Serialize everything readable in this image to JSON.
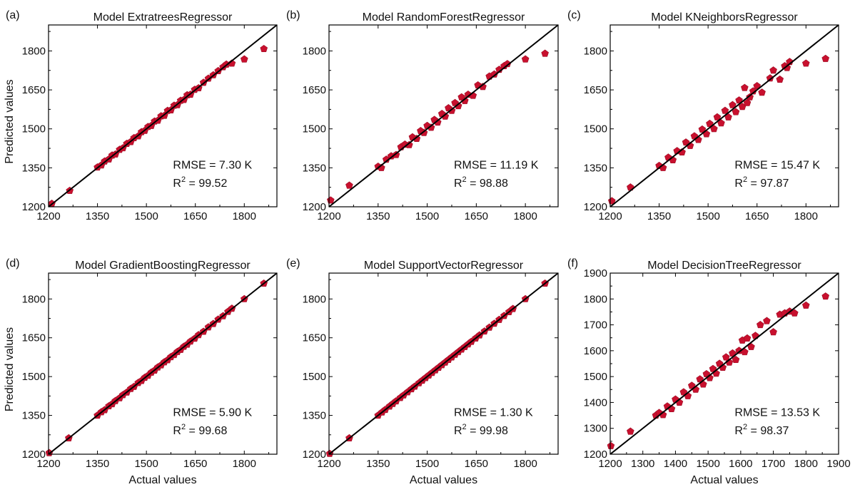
{
  "figure": {
    "ylabel": "Predicted values",
    "xlabel": "Actual values",
    "colors": {
      "marker": "#c8102e",
      "marker_edge": "#9e0d24",
      "line": "#000000"
    },
    "marker_shape": "pentagon-icon"
  },
  "chart_data": [
    {
      "type": "scatter",
      "panel_label": "(a)",
      "title": "Model ExtratreesRegressor",
      "xlim": [
        1200,
        1900
      ],
      "ylim": [
        1200,
        1900
      ],
      "xticks": [
        1200,
        1350,
        1500,
        1650,
        1800
      ],
      "yticks": [
        1200,
        1350,
        1500,
        1650,
        1800
      ],
      "show_xlabel": false,
      "show_ylabel": true,
      "rmse_text": "RMSE = 7.30 K",
      "r2_value": " = 99.52",
      "reference_line": "y = x",
      "points": [
        [
          1210,
          1212
        ],
        [
          1265,
          1262
        ],
        [
          1350,
          1352
        ],
        [
          1362,
          1360
        ],
        [
          1372,
          1375
        ],
        [
          1385,
          1383
        ],
        [
          1395,
          1398
        ],
        [
          1405,
          1402
        ],
        [
          1418,
          1420
        ],
        [
          1428,
          1426
        ],
        [
          1440,
          1443
        ],
        [
          1452,
          1450
        ],
        [
          1462,
          1465
        ],
        [
          1475,
          1472
        ],
        [
          1485,
          1488
        ],
        [
          1495,
          1493
        ],
        [
          1505,
          1508
        ],
        [
          1515,
          1512
        ],
        [
          1525,
          1529
        ],
        [
          1535,
          1532
        ],
        [
          1545,
          1549
        ],
        [
          1555,
          1551
        ],
        [
          1565,
          1570
        ],
        [
          1575,
          1572
        ],
        [
          1585,
          1590
        ],
        [
          1595,
          1592
        ],
        [
          1605,
          1609
        ],
        [
          1615,
          1612
        ],
        [
          1625,
          1630
        ],
        [
          1635,
          1632
        ],
        [
          1648,
          1651
        ],
        [
          1660,
          1657
        ],
        [
          1675,
          1678
        ],
        [
          1690,
          1694
        ],
        [
          1705,
          1707
        ],
        [
          1720,
          1723
        ],
        [
          1735,
          1738
        ],
        [
          1745,
          1748
        ],
        [
          1762,
          1752
        ],
        [
          1800,
          1768
        ],
        [
          1860,
          1808
        ]
      ]
    },
    {
      "type": "scatter",
      "panel_label": "(b)",
      "title": "Model RandomForestRegressor",
      "xlim": [
        1200,
        1900
      ],
      "ylim": [
        1200,
        1900
      ],
      "xticks": [
        1200,
        1350,
        1500,
        1650,
        1800
      ],
      "yticks": [
        1200,
        1350,
        1500,
        1650,
        1800
      ],
      "show_xlabel": false,
      "show_ylabel": false,
      "rmse_text": "RMSE = 11.19 K",
      "r2_value": " = 98.88",
      "reference_line": "y = x",
      "points": [
        [
          1205,
          1225
        ],
        [
          1262,
          1282
        ],
        [
          1350,
          1355
        ],
        [
          1360,
          1350
        ],
        [
          1375,
          1382
        ],
        [
          1390,
          1395
        ],
        [
          1405,
          1400
        ],
        [
          1420,
          1430
        ],
        [
          1432,
          1440
        ],
        [
          1445,
          1438
        ],
        [
          1455,
          1468
        ],
        [
          1468,
          1462
        ],
        [
          1480,
          1492
        ],
        [
          1490,
          1485
        ],
        [
          1500,
          1512
        ],
        [
          1512,
          1505
        ],
        [
          1522,
          1535
        ],
        [
          1532,
          1525
        ],
        [
          1545,
          1558
        ],
        [
          1555,
          1548
        ],
        [
          1565,
          1580
        ],
        [
          1575,
          1570
        ],
        [
          1585,
          1600
        ],
        [
          1595,
          1588
        ],
        [
          1605,
          1622
        ],
        [
          1615,
          1608
        ],
        [
          1625,
          1632
        ],
        [
          1640,
          1628
        ],
        [
          1655,
          1668
        ],
        [
          1670,
          1662
        ],
        [
          1690,
          1702
        ],
        [
          1705,
          1710
        ],
        [
          1720,
          1728
        ],
        [
          1735,
          1742
        ],
        [
          1745,
          1750
        ],
        [
          1800,
          1768
        ],
        [
          1860,
          1790
        ]
      ]
    },
    {
      "type": "scatter",
      "panel_label": "(c)",
      "title": "Model KNeighborsRegressor",
      "xlim": [
        1200,
        1900
      ],
      "ylim": [
        1200,
        1900
      ],
      "xticks": [
        1200,
        1350,
        1500,
        1650,
        1800
      ],
      "yticks": [
        1200,
        1350,
        1500,
        1650,
        1800
      ],
      "show_xlabel": false,
      "show_ylabel": false,
      "rmse_text": "RMSE = 15.47 K",
      "r2_value": " = 97.87",
      "reference_line": "y = x",
      "points": [
        [
          1205,
          1222
        ],
        [
          1262,
          1275
        ],
        [
          1350,
          1358
        ],
        [
          1362,
          1350
        ],
        [
          1378,
          1390
        ],
        [
          1392,
          1380
        ],
        [
          1405,
          1415
        ],
        [
          1420,
          1410
        ],
        [
          1432,
          1448
        ],
        [
          1445,
          1435
        ],
        [
          1458,
          1472
        ],
        [
          1470,
          1458
        ],
        [
          1482,
          1498
        ],
        [
          1495,
          1480
        ],
        [
          1505,
          1520
        ],
        [
          1518,
          1500
        ],
        [
          1528,
          1545
        ],
        [
          1540,
          1522
        ],
        [
          1552,
          1570
        ],
        [
          1562,
          1545
        ],
        [
          1575,
          1592
        ],
        [
          1585,
          1565
        ],
        [
          1595,
          1610
        ],
        [
          1605,
          1585
        ],
        [
          1612,
          1658
        ],
        [
          1620,
          1600
        ],
        [
          1628,
          1622
        ],
        [
          1638,
          1645
        ],
        [
          1650,
          1665
        ],
        [
          1665,
          1640
        ],
        [
          1690,
          1695
        ],
        [
          1700,
          1725
        ],
        [
          1720,
          1690
        ],
        [
          1735,
          1742
        ],
        [
          1742,
          1735
        ],
        [
          1750,
          1758
        ],
        [
          1800,
          1752
        ],
        [
          1860,
          1770
        ]
      ]
    },
    {
      "type": "scatter",
      "panel_label": "(d)",
      "title": "Model GradientBoostingRegressor",
      "xlim": [
        1200,
        1900
      ],
      "ylim": [
        1200,
        1900
      ],
      "xticks": [
        1200,
        1350,
        1500,
        1650,
        1800
      ],
      "yticks": [
        1200,
        1350,
        1500,
        1650,
        1800
      ],
      "show_xlabel": true,
      "show_ylabel": true,
      "rmse_text": "RMSE = 5.90 K",
      "r2_value": " = 99.68",
      "reference_line": "y = x",
      "points": [
        [
          1202,
          1205
        ],
        [
          1262,
          1262
        ],
        [
          1350,
          1350
        ],
        [
          1362,
          1363
        ],
        [
          1372,
          1371
        ],
        [
          1385,
          1386
        ],
        [
          1395,
          1394
        ],
        [
          1405,
          1406
        ],
        [
          1418,
          1417
        ],
        [
          1428,
          1429
        ],
        [
          1440,
          1439
        ],
        [
          1452,
          1453
        ],
        [
          1462,
          1461
        ],
        [
          1475,
          1476
        ],
        [
          1485,
          1484
        ],
        [
          1495,
          1496
        ],
        [
          1505,
          1504
        ],
        [
          1515,
          1516
        ],
        [
          1525,
          1524
        ],
        [
          1535,
          1536
        ],
        [
          1545,
          1544
        ],
        [
          1555,
          1556
        ],
        [
          1565,
          1564
        ],
        [
          1575,
          1576
        ],
        [
          1585,
          1584
        ],
        [
          1595,
          1596
        ],
        [
          1605,
          1604
        ],
        [
          1615,
          1616
        ],
        [
          1625,
          1624
        ],
        [
          1635,
          1636
        ],
        [
          1648,
          1647
        ],
        [
          1660,
          1661
        ],
        [
          1675,
          1674
        ],
        [
          1690,
          1691
        ],
        [
          1705,
          1704
        ],
        [
          1720,
          1721
        ],
        [
          1735,
          1734
        ],
        [
          1750,
          1751
        ],
        [
          1762,
          1763
        ],
        [
          1800,
          1800
        ],
        [
          1860,
          1860
        ]
      ]
    },
    {
      "type": "scatter",
      "panel_label": "(e)",
      "title": "Model SupportVectorRegressor",
      "xlim": [
        1200,
        1900
      ],
      "ylim": [
        1200,
        1900
      ],
      "xticks": [
        1200,
        1350,
        1500,
        1650,
        1800
      ],
      "yticks": [
        1200,
        1350,
        1500,
        1650,
        1800
      ],
      "show_xlabel": true,
      "show_ylabel": false,
      "rmse_text": "RMSE = 1.30 K",
      "r2_value": " = 99.98",
      "reference_line": "y = x",
      "points": [
        [
          1202,
          1202
        ],
        [
          1262,
          1262
        ],
        [
          1350,
          1350
        ],
        [
          1362,
          1362
        ],
        [
          1372,
          1372
        ],
        [
          1385,
          1385
        ],
        [
          1395,
          1395
        ],
        [
          1405,
          1405
        ],
        [
          1418,
          1418
        ],
        [
          1428,
          1428
        ],
        [
          1440,
          1440
        ],
        [
          1452,
          1452
        ],
        [
          1462,
          1462
        ],
        [
          1475,
          1475
        ],
        [
          1485,
          1485
        ],
        [
          1495,
          1495
        ],
        [
          1505,
          1505
        ],
        [
          1515,
          1515
        ],
        [
          1525,
          1525
        ],
        [
          1535,
          1535
        ],
        [
          1545,
          1545
        ],
        [
          1555,
          1555
        ],
        [
          1565,
          1565
        ],
        [
          1575,
          1575
        ],
        [
          1585,
          1585
        ],
        [
          1595,
          1595
        ],
        [
          1605,
          1605
        ],
        [
          1615,
          1615
        ],
        [
          1625,
          1625
        ],
        [
          1635,
          1635
        ],
        [
          1648,
          1648
        ],
        [
          1660,
          1660
        ],
        [
          1675,
          1675
        ],
        [
          1690,
          1690
        ],
        [
          1705,
          1705
        ],
        [
          1720,
          1720
        ],
        [
          1735,
          1735
        ],
        [
          1750,
          1750
        ],
        [
          1762,
          1762
        ],
        [
          1800,
          1800
        ],
        [
          1860,
          1860
        ]
      ]
    },
    {
      "type": "scatter",
      "panel_label": "(f)",
      "title": "Model DecisionTreeRegressor",
      "xlim": [
        1200,
        1900
      ],
      "ylim": [
        1200,
        1900
      ],
      "xticks": [
        1200,
        1300,
        1400,
        1500,
        1600,
        1700,
        1800,
        1900
      ],
      "yticks": [
        1200,
        1300,
        1400,
        1500,
        1600,
        1700,
        1800,
        1900
      ],
      "show_xlabel": true,
      "show_ylabel": false,
      "rmse_text": "RMSE = 13.53 K",
      "r2_value": " = 98.37",
      "reference_line": "y = x",
      "points": [
        [
          1202,
          1232
        ],
        [
          1262,
          1288
        ],
        [
          1340,
          1350
        ],
        [
          1350,
          1360
        ],
        [
          1362,
          1352
        ],
        [
          1375,
          1385
        ],
        [
          1388,
          1375
        ],
        [
          1400,
          1412
        ],
        [
          1412,
          1400
        ],
        [
          1425,
          1440
        ],
        [
          1438,
          1425
        ],
        [
          1450,
          1465
        ],
        [
          1462,
          1450
        ],
        [
          1475,
          1490
        ],
        [
          1485,
          1470
        ],
        [
          1495,
          1510
        ],
        [
          1505,
          1495
        ],
        [
          1515,
          1530
        ],
        [
          1525,
          1512
        ],
        [
          1535,
          1550
        ],
        [
          1545,
          1535
        ],
        [
          1555,
          1575
        ],
        [
          1565,
          1555
        ],
        [
          1575,
          1590
        ],
        [
          1585,
          1565
        ],
        [
          1595,
          1600
        ],
        [
          1605,
          1640
        ],
        [
          1612,
          1595
        ],
        [
          1620,
          1648
        ],
        [
          1632,
          1615
        ],
        [
          1645,
          1658
        ],
        [
          1660,
          1700
        ],
        [
          1680,
          1715
        ],
        [
          1700,
          1672
        ],
        [
          1720,
          1740
        ],
        [
          1735,
          1745
        ],
        [
          1750,
          1752
        ],
        [
          1765,
          1745
        ],
        [
          1800,
          1775
        ],
        [
          1860,
          1810
        ]
      ]
    }
  ]
}
